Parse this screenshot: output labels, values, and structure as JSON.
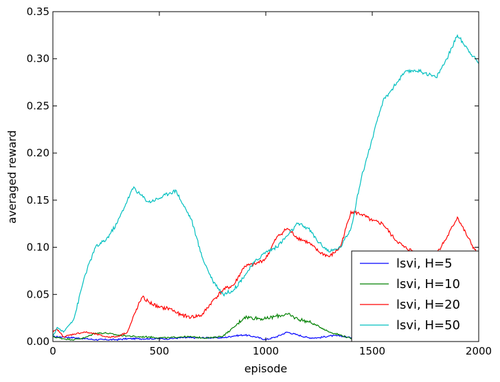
{
  "chart_data": {
    "type": "line",
    "title": "",
    "xlabel": "episode",
    "ylabel": "averaged reward",
    "xlim": [
      0,
      2000
    ],
    "ylim": [
      0,
      0.35
    ],
    "xticks": [
      0,
      500,
      1000,
      1500,
      2000
    ],
    "xtick_labels": [
      "0",
      "500",
      "1000",
      "1500",
      "2000"
    ],
    "yticks": [
      0,
      0.05,
      0.1,
      0.15,
      0.2,
      0.25,
      0.3,
      0.35
    ],
    "ytick_labels": [
      "0.00",
      "0.05",
      "0.10",
      "0.15",
      "0.20",
      "0.25",
      "0.30",
      "0.35"
    ],
    "grid": false,
    "legend_position": "lower-right",
    "series": [
      {
        "name": "lsvi, H=5",
        "color": "#0000ff",
        "x": [
          0,
          50,
          100,
          150,
          200,
          250,
          300,
          350,
          400,
          450,
          500,
          550,
          600,
          650,
          700,
          750,
          800,
          850,
          900,
          950,
          1000,
          1050,
          1100,
          1150,
          1200,
          1250,
          1300,
          1350,
          1400,
          1450,
          1500,
          1550,
          1600,
          1650,
          1700,
          1750,
          1800,
          1850,
          1900,
          1950,
          2000
        ],
        "y": [
          0.005,
          0.005,
          0.004,
          0.003,
          0.002,
          0.002,
          0.002,
          0.003,
          0.003,
          0.003,
          0.003,
          0.003,
          0.004,
          0.004,
          0.004,
          0.004,
          0.004,
          0.006,
          0.007,
          0.005,
          0.002,
          0.005,
          0.01,
          0.007,
          0.004,
          0.004,
          0.006,
          0.006,
          0.004,
          0.003,
          0.005,
          0.006,
          0.006,
          0.005,
          0.006,
          0.006,
          0.005,
          0.006,
          0.008,
          0.006,
          0.01
        ]
      },
      {
        "name": "lsvi, H=10",
        "color": "#008000",
        "x": [
          0,
          50,
          100,
          150,
          200,
          250,
          300,
          350,
          400,
          450,
          500,
          550,
          600,
          650,
          700,
          750,
          800,
          850,
          900,
          950,
          1000,
          1050,
          1100,
          1150,
          1200,
          1250,
          1300,
          1350,
          1400,
          1450,
          1500,
          1550,
          1600,
          1650,
          1700,
          1750,
          1800,
          1850,
          1900,
          1950,
          2000
        ],
        "y": [
          0.005,
          0.003,
          0.002,
          0.004,
          0.009,
          0.009,
          0.007,
          0.006,
          0.005,
          0.005,
          0.004,
          0.004,
          0.005,
          0.005,
          0.004,
          0.004,
          0.006,
          0.015,
          0.026,
          0.025,
          0.024,
          0.027,
          0.029,
          0.024,
          0.021,
          0.016,
          0.01,
          0.007,
          0.003,
          0.003,
          0.006,
          0.008,
          0.01,
          0.007,
          0.005,
          0.005,
          0.007,
          0.008,
          0.03,
          0.05,
          0.04
        ]
      },
      {
        "name": "lsvi, H=20",
        "color": "#ff0000",
        "x": [
          0,
          20,
          50,
          100,
          150,
          200,
          250,
          300,
          350,
          400,
          420,
          450,
          500,
          550,
          600,
          650,
          700,
          750,
          800,
          850,
          900,
          950,
          1000,
          1050,
          1100,
          1150,
          1200,
          1250,
          1300,
          1350,
          1400,
          1450,
          1500,
          1550,
          1600,
          1650,
          1700,
          1750,
          1800,
          1850,
          1900,
          1950,
          2000
        ],
        "y": [
          0.01,
          0.013,
          0.005,
          0.008,
          0.01,
          0.008,
          0.005,
          0.005,
          0.01,
          0.038,
          0.047,
          0.042,
          0.036,
          0.035,
          0.028,
          0.026,
          0.028,
          0.043,
          0.055,
          0.06,
          0.08,
          0.082,
          0.088,
          0.11,
          0.12,
          0.11,
          0.105,
          0.095,
          0.09,
          0.1,
          0.138,
          0.135,
          0.128,
          0.125,
          0.11,
          0.1,
          0.095,
          0.085,
          0.093,
          0.11,
          0.132,
          0.11,
          0.09
        ]
      },
      {
        "name": "lsvi, H=50",
        "color": "#00bfbf",
        "x": [
          0,
          20,
          50,
          100,
          150,
          200,
          250,
          300,
          350,
          380,
          400,
          450,
          500,
          550,
          580,
          600,
          650,
          700,
          750,
          800,
          850,
          900,
          950,
          1000,
          1050,
          1100,
          1150,
          1200,
          1250,
          1300,
          1350,
          1400,
          1450,
          1500,
          1550,
          1600,
          1650,
          1700,
          1750,
          1800,
          1850,
          1900,
          1950,
          2000
        ],
        "y": [
          0.005,
          0.015,
          0.01,
          0.025,
          0.07,
          0.1,
          0.108,
          0.125,
          0.15,
          0.164,
          0.158,
          0.148,
          0.152,
          0.158,
          0.16,
          0.15,
          0.13,
          0.09,
          0.065,
          0.05,
          0.055,
          0.07,
          0.085,
          0.095,
          0.1,
          0.112,
          0.125,
          0.12,
          0.105,
          0.095,
          0.1,
          0.12,
          0.175,
          0.215,
          0.255,
          0.27,
          0.285,
          0.288,
          0.285,
          0.28,
          0.3,
          0.325,
          0.31,
          0.295
        ]
      }
    ]
  }
}
